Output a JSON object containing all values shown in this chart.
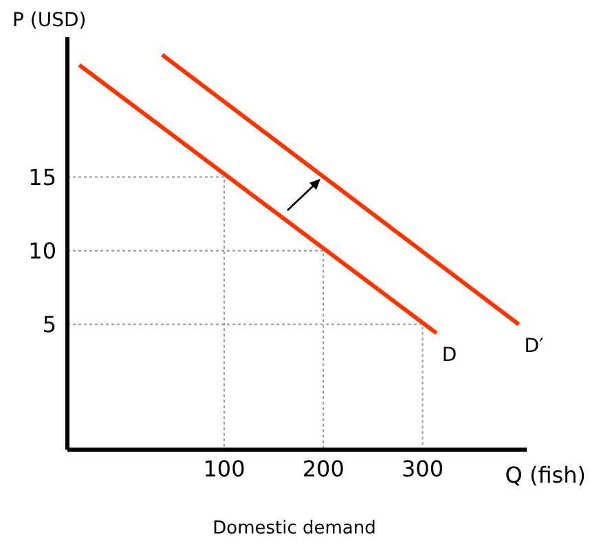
{
  "chart_data": {
    "type": "line",
    "title": "Domestic demand",
    "xlabel": "Q (fish)",
    "ylabel": "P (USD)",
    "xlim": [
      -58,
      405
    ],
    "ylim": [
      -3.5,
      24.5
    ],
    "xticks": [
      100,
      200,
      300
    ],
    "yticks": [
      5,
      10,
      15
    ],
    "grid": false,
    "legend": false,
    "marker": "none",
    "series": [
      {
        "name": "D",
        "color": "#ff3300",
        "x": [
          -46,
          314
        ],
        "values": [
          22.6,
          4.4
        ]
      },
      {
        "name": "D′",
        "color": "#ff3300",
        "x": [
          37.5,
          397
        ],
        "values": [
          23.3,
          5.0
        ]
      },
      {
        "color": "#999999",
        "line_style": "dotted",
        "x": [
          -58,
          100,
          100
        ],
        "values": [
          15,
          15,
          -3.5
        ]
      },
      {
        "color": "#999999",
        "line_style": "dotted",
        "x": [
          -58,
          200,
          200
        ],
        "values": [
          10,
          10,
          -3.5
        ]
      },
      {
        "color": "#999999",
        "line_style": "dotted",
        "x": [
          -58,
          300,
          300
        ],
        "values": [
          5,
          5,
          -3.5
        ]
      }
    ]
  }
}
